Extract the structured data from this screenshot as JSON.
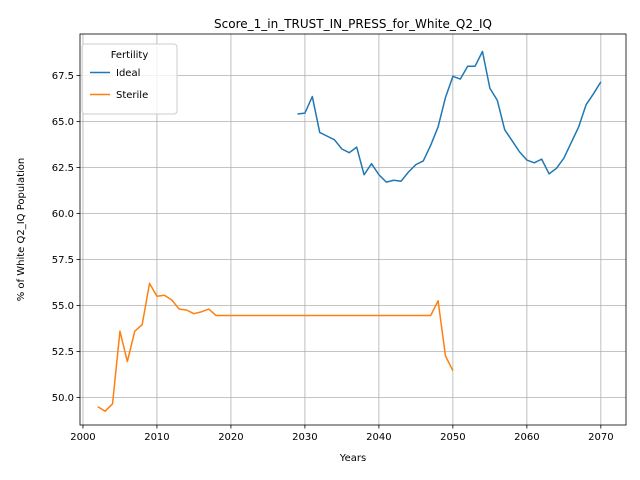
{
  "chart_data": {
    "type": "line",
    "title": "Score_1_in_TRUST_IN_PRESS_for_White_Q2_IQ",
    "xlabel": "Years",
    "ylabel": "% of White Q2_IQ Population",
    "xlim": [
      1999.6,
      2073.4
    ],
    "ylim": [
      48.5,
      69.75
    ],
    "xticks": [
      2000,
      2010,
      2020,
      2030,
      2040,
      2050,
      2060,
      2070
    ],
    "yticks": [
      50.0,
      52.5,
      55.0,
      57.5,
      60.0,
      62.5,
      65.0,
      67.5
    ],
    "xtick_labels": [
      "2000",
      "2010",
      "2020",
      "2030",
      "2040",
      "2050",
      "2060",
      "2070"
    ],
    "ytick_labels": [
      "50.0",
      "52.5",
      "55.0",
      "57.5",
      "60.0",
      "62.5",
      "65.0",
      "67.5"
    ],
    "grid": true,
    "legend": {
      "title": "Fertility",
      "placement": "upper-left"
    },
    "series": [
      {
        "name": "Ideal",
        "color": "#1f77b4",
        "x": [
          2029,
          2030,
          2031,
          2032,
          2033,
          2034,
          2035,
          2036,
          2037,
          2038,
          2039,
          2040,
          2041,
          2042,
          2043,
          2044,
          2045,
          2046,
          2047,
          2048,
          2049,
          2050,
          2051,
          2052,
          2053,
          2054,
          2055,
          2056,
          2057,
          2058,
          2059,
          2060,
          2061,
          2062,
          2063,
          2064,
          2065,
          2066,
          2067,
          2068,
          2069,
          2070
        ],
        "y": [
          65.4,
          65.45,
          66.35,
          64.4,
          64.2,
          64.0,
          63.5,
          63.3,
          63.6,
          62.1,
          62.7,
          62.1,
          61.7,
          61.8,
          61.75,
          62.25,
          62.65,
          62.85,
          63.7,
          64.7,
          66.3,
          67.45,
          67.3,
          68.0,
          68.0,
          68.8,
          66.8,
          66.15,
          64.55,
          63.95,
          63.35,
          62.9,
          62.75,
          62.95,
          62.15,
          62.45,
          63.0,
          63.85,
          64.7,
          65.9,
          66.5,
          67.15
        ]
      },
      {
        "name": "Sterile",
        "color": "#ff7f0e",
        "x": [
          2002,
          2003,
          2004,
          2005,
          2006,
          2007,
          2008,
          2009,
          2010,
          2011,
          2012,
          2013,
          2014,
          2015,
          2016,
          2017,
          2018,
          2019,
          2020,
          2021,
          2022,
          2023,
          2024,
          2025,
          2026,
          2027,
          2028,
          2029,
          2030,
          2031,
          2032,
          2033,
          2034,
          2035,
          2036,
          2037,
          2038,
          2039,
          2040,
          2041,
          2042,
          2043,
          2044,
          2045,
          2046,
          2047,
          2048,
          2049,
          2050
        ],
        "y": [
          49.5,
          49.25,
          49.65,
          53.6,
          51.95,
          53.6,
          53.95,
          56.2,
          55.5,
          55.55,
          55.3,
          54.8,
          54.75,
          54.55,
          54.65,
          54.8,
          54.45,
          54.45,
          54.45,
          54.45,
          54.45,
          54.45,
          54.45,
          54.45,
          54.45,
          54.45,
          54.45,
          54.45,
          54.45,
          54.45,
          54.45,
          54.45,
          54.45,
          54.45,
          54.45,
          54.45,
          54.45,
          54.45,
          54.45,
          54.45,
          54.45,
          54.45,
          54.45,
          54.45,
          54.45,
          54.45,
          55.25,
          52.25,
          51.45
        ]
      }
    ]
  }
}
